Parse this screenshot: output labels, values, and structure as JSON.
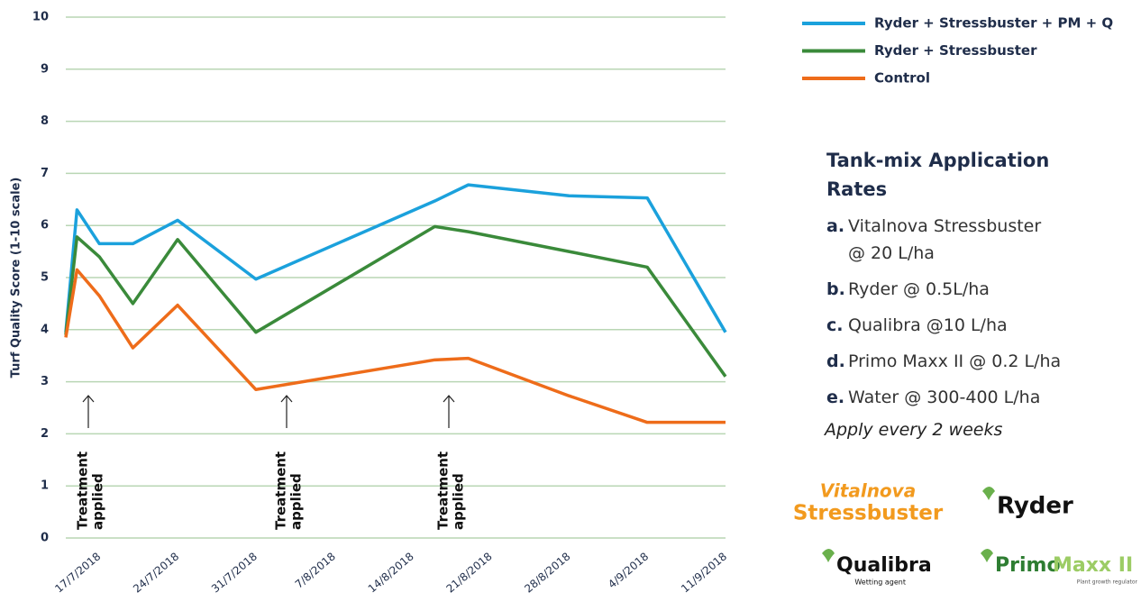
{
  "chart_data": {
    "type": "line",
    "y_label": "Turf Quality Score (1-10 scale)",
    "x": [
      "14/7/2018",
      "15/7/2018",
      "17/7/2018",
      "20/7/2018",
      "24/7/2018",
      "31/7/2018",
      "16/8/2018",
      "19/8/2018",
      "28/8/2018",
      "4/9/2018",
      "11/9/2018"
    ],
    "series": [
      {
        "name": "Ryder + Stressbuster + PM + Q",
        "color": "#1ba1dc",
        "values": [
          3.95,
          6.3,
          5.65,
          5.65,
          6.1,
          4.97,
          6.47,
          6.78,
          6.57,
          6.53,
          3.95
        ]
      },
      {
        "name": "Ryder + Stressbuster",
        "color": "#3a8a3a",
        "values": [
          3.9,
          5.78,
          5.4,
          4.5,
          5.73,
          3.95,
          5.98,
          5.88,
          5.5,
          5.2,
          3.1
        ]
      },
      {
        "name": "Control",
        "color": "#ee6c1a",
        "values": [
          3.85,
          5.15,
          4.65,
          3.65,
          4.47,
          2.85,
          3.42,
          3.45,
          2.73,
          2.22,
          2.22
        ]
      }
    ],
    "xlim": [
      "14/7/2018",
      "11/9/2018"
    ],
    "xticks": [
      "17/7/2018",
      "24/7/2018",
      "31/7/2018",
      "7/8/2018",
      "14/8/2018",
      "21/8/2018",
      "28/8/2018",
      "4/9/2018",
      "11/9/2018"
    ],
    "ylim": [
      0,
      10
    ],
    "yticks": [
      0,
      1,
      2,
      3,
      4,
      5,
      6,
      7,
      8,
      9,
      10
    ],
    "grid": true,
    "annotations": [
      [
        "Treatment",
        "applied"
      ],
      [
        "Treatment",
        "applied"
      ],
      [
        "Treatment",
        "applied"
      ]
    ]
  },
  "panel": {
    "title": "Tank-mix Application Rates",
    "items": [
      [
        "a.",
        "Vitalnova Stressbuster @ 20 L/ha"
      ],
      [
        "b.",
        "Ryder @ 0.5L/ha"
      ],
      [
        "c.",
        "Qualibra @10 L/ha"
      ],
      [
        "d.",
        "Primo Maxx II @ 0.2 L/ha"
      ],
      [
        "e.",
        "Water @ 300-400 L/ha"
      ]
    ],
    "note": "Apply every 2 weeks"
  },
  "logos": {
    "vitalnova": "Vitalnova",
    "stressbuster": "Stressbuster",
    "ryder": "Ryder",
    "qualibra": "Qualibra",
    "qualibra_sub": "Wetting agent",
    "primo": "Primo",
    "maxx": "Maxx II",
    "primo_sub": "Plant growth regulator"
  }
}
